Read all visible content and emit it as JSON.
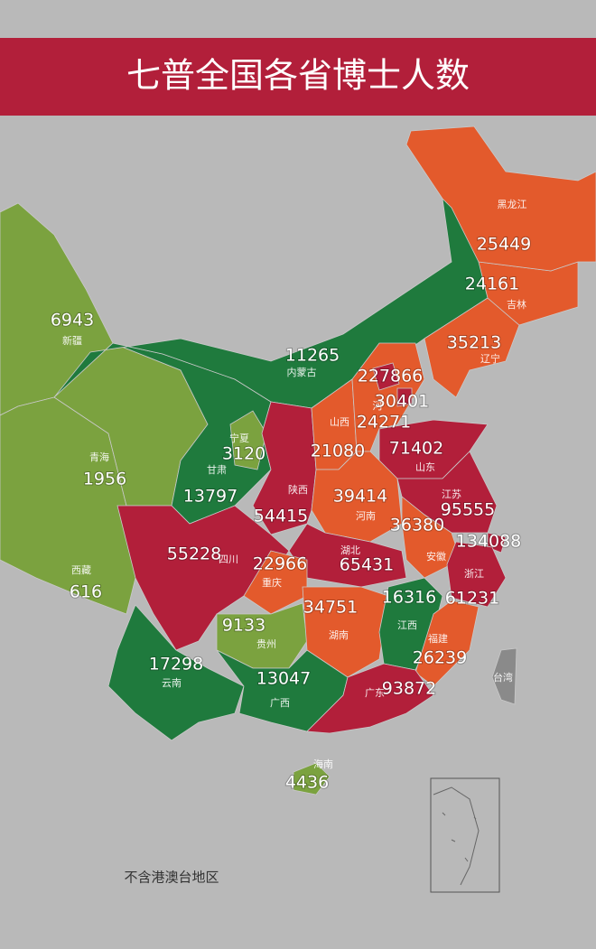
{
  "header": {
    "title": "七普全国各省博士人数"
  },
  "regions": [
    {
      "name": "新疆",
      "value": 6943,
      "color": "#7ba23f"
    },
    {
      "name": "西藏",
      "value": 616,
      "color": "#7ba23f"
    },
    {
      "name": "青海",
      "value": 1956,
      "color": "#7ba23f"
    },
    {
      "name": "甘肃",
      "value": 13797,
      "color": "#1f7a3d"
    },
    {
      "name": "内蒙古",
      "value": 11265,
      "color": "#1f7a3d"
    },
    {
      "name": "宁夏",
      "value": 3120,
      "color": "#7ba23f"
    },
    {
      "name": "陕西",
      "value": 54415,
      "color": "#b21f3a"
    },
    {
      "name": "山西",
      "value": 21080,
      "color": "#e35a2c"
    },
    {
      "name": "河",
      "value": 24271,
      "color": "#e35a2c"
    },
    {
      "value": 227866,
      "color": "#b21f3a"
    },
    {
      "value": 30401,
      "color": "#b21f3a"
    },
    {
      "name": "辽宁",
      "value": 35213,
      "color": "#e35a2c"
    },
    {
      "name": "吉林",
      "value": 24161,
      "color": "#e35a2c"
    },
    {
      "name": "黑龙江",
      "value": 25449,
      "color": "#e35a2c"
    },
    {
      "name": "山东",
      "value": 71402,
      "color": "#b21f3a"
    },
    {
      "name": "河南",
      "value": 39414,
      "color": "#e35a2c"
    },
    {
      "name": "江苏",
      "value": 95555,
      "color": "#b21f3a"
    },
    {
      "name": "安徽",
      "value": 36380,
      "color": "#e35a2c"
    },
    {
      "value": 134088,
      "color": "#b21f3a"
    },
    {
      "name": "浙江",
      "value": 61231,
      "color": "#b21f3a"
    },
    {
      "name": "湖北",
      "value": 65431,
      "color": "#b21f3a"
    },
    {
      "name": "四川",
      "value": 55228,
      "color": "#b21f3a"
    },
    {
      "name": "重庆",
      "value": 22966,
      "color": "#e35a2c"
    },
    {
      "name": "贵州",
      "value": 9133,
      "color": "#7ba23f"
    },
    {
      "name": "湖南",
      "value": 34751,
      "color": "#e35a2c"
    },
    {
      "name": "江西",
      "value": 16316,
      "color": "#1f7a3d"
    },
    {
      "name": "福建",
      "value": 26239,
      "color": "#e35a2c"
    },
    {
      "name": "云南",
      "value": 17298,
      "color": "#1f7a3d"
    },
    {
      "name": "广西",
      "value": 13047,
      "color": "#1f7a3d"
    },
    {
      "name": "广东",
      "value": 93872,
      "color": "#b21f3a"
    },
    {
      "name": "海南",
      "value": 4436,
      "color": "#7ba23f"
    },
    {
      "name": "台湾",
      "color": "#8a8a8a"
    }
  ],
  "note": "不含港澳台地区"
}
